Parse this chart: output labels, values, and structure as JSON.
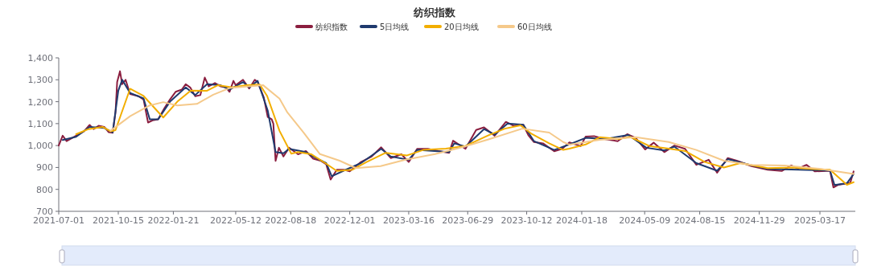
{
  "chart_data": {
    "type": "line",
    "title": "纺织指数",
    "legend": "top",
    "xlim": [
      "2021-07-01",
      "2025-05-19"
    ],
    "xticks": [
      "2021-07-01",
      "2021-10-15",
      "2022-01-21",
      "2022-05-12",
      "2022-08-18",
      "2022-12-01",
      "2023-03-16",
      "2023-06-29",
      "2023-10-12",
      "2024-01-18",
      "2024-05-09",
      "2024-08-15",
      "2024-11-29",
      "2025-03-17"
    ],
    "ylim": [
      700,
      1400
    ],
    "yticks": [
      700,
      800,
      900,
      {
        "value": 1000,
        "label": "1,000"
      },
      {
        "value": 1100,
        "label": "1,100"
      },
      {
        "value": 1200,
        "label": "1,200"
      },
      {
        "value": 1300,
        "label": "1,300"
      },
      {
        "value": 1400,
        "label": "1,400"
      }
    ],
    "series": [
      {
        "name": "纺织指数",
        "color": "#8b1e3f",
        "x": [
          "2021-07-01",
          "2021-07-08",
          "2021-07-15",
          "2021-08-01",
          "2021-08-15",
          "2021-08-25",
          "2021-09-01",
          "2021-09-10",
          "2021-09-20",
          "2021-09-28",
          "2021-10-05",
          "2021-10-10",
          "2021-10-13",
          "2021-10-18",
          "2021-10-22",
          "2021-10-28",
          "2021-11-05",
          "2021-11-20",
          "2021-11-29",
          "2021-12-07",
          "2021-12-15",
          "2021-12-25",
          "2022-01-05",
          "2022-01-15",
          "2022-01-25",
          "2022-02-05",
          "2022-02-12",
          "2022-02-20",
          "2022-03-01",
          "2022-03-10",
          "2022-03-18",
          "2022-03-25",
          "2022-04-05",
          "2022-04-15",
          "2022-04-25",
          "2022-05-01",
          "2022-05-08",
          "2022-05-12",
          "2022-05-25",
          "2022-06-05",
          "2022-06-15",
          "2022-06-20",
          "2022-07-01",
          "2022-07-08",
          "2022-07-15",
          "2022-07-18",
          "2022-07-22",
          "2022-07-28",
          "2022-08-05",
          "2022-08-15",
          "2022-08-31",
          "2022-09-14",
          "2022-09-27",
          "2022-10-10",
          "2022-10-20",
          "2022-10-28",
          "2022-11-08",
          "2022-11-20",
          "2022-12-01",
          "2022-12-21",
          "2023-01-09",
          "2023-01-26",
          "2023-02-12",
          "2023-03-03",
          "2023-03-16",
          "2023-03-31",
          "2023-04-19",
          "2023-05-08",
          "2023-05-27",
          "2023-06-03",
          "2023-06-25",
          "2023-07-14",
          "2023-07-28",
          "2023-08-16",
          "2023-09-05",
          "2023-09-19",
          "2023-10-06",
          "2023-10-15",
          "2023-10-25",
          "2023-11-10",
          "2023-11-30",
          "2023-12-14",
          "2023-12-27",
          "2024-01-16",
          "2024-01-25",
          "2024-02-09",
          "2024-02-29",
          "2024-03-22",
          "2024-04-08",
          "2024-04-23",
          "2024-05-10",
          "2024-05-25",
          "2024-06-13",
          "2024-07-01",
          "2024-07-20",
          "2024-08-09",
          "2024-08-31",
          "2024-09-15",
          "2024-10-04",
          "2024-10-21",
          "2024-11-15",
          "2024-12-14",
          "2025-01-08",
          "2025-01-25",
          "2025-02-06",
          "2025-02-21",
          "2025-03-08",
          "2025-04-04",
          "2025-04-10",
          "2025-04-19",
          "2025-05-04",
          "2025-05-10",
          "2025-05-16"
        ],
        "values": [
          1000,
          1045,
          1020,
          1045,
          1065,
          1094,
          1075,
          1090,
          1085,
          1061,
          1058,
          1150,
          1290,
          1339,
          1280,
          1300,
          1235,
          1225,
          1210,
          1105,
          1115,
          1120,
          1170,
          1210,
          1245,
          1255,
          1280,
          1265,
          1225,
          1230,
          1310,
          1270,
          1285,
          1270,
          1265,
          1245,
          1295,
          1275,
          1300,
          1260,
          1300,
          1290,
          1220,
          1130,
          1120,
          1100,
          930,
          990,
          950,
          990,
          960,
          975,
          940,
          931,
          915,
          845,
          890,
          890,
          882,
          925,
          950,
          992,
          943,
          960,
          925,
          985,
          985,
          975,
          967,
          1022,
          985,
          1071,
          1083,
          1045,
          1108,
          1090,
          1095,
          1047,
          1016,
          1010,
          974,
          985,
          1014,
          998,
          1041,
          1043,
          1029,
          1020,
          1052,
          1035,
          982,
          1013,
          970,
          1000,
          985,
          912,
          935,
          876,
          943,
          930,
          906,
          890,
          884,
          909,
          895,
          912,
          882,
          885,
          809,
          821,
          827,
          830,
          882
        ]
      },
      {
        "name": "5日均线",
        "color": "#1f3a6e",
        "x": [
          "2021-07-08",
          "2021-08-01",
          "2021-08-25",
          "2021-09-20",
          "2021-10-05",
          "2021-10-15",
          "2021-10-22",
          "2021-11-05",
          "2021-11-29",
          "2021-12-10",
          "2021-12-25",
          "2022-01-15",
          "2022-02-12",
          "2022-03-01",
          "2022-03-22",
          "2022-04-15",
          "2022-05-01",
          "2022-05-25",
          "2022-06-05",
          "2022-06-20",
          "2022-07-08",
          "2022-07-22",
          "2022-08-05",
          "2022-08-15",
          "2022-09-14",
          "2022-09-27",
          "2022-10-20",
          "2022-10-30",
          "2022-11-20",
          "2022-12-21",
          "2023-01-26",
          "2023-02-12",
          "2023-03-16",
          "2023-03-31",
          "2023-05-27",
          "2023-06-05",
          "2023-06-25",
          "2023-07-28",
          "2023-08-16",
          "2023-09-08",
          "2023-10-06",
          "2023-10-25",
          "2023-11-30",
          "2023-12-27",
          "2024-01-25",
          "2024-02-29",
          "2024-04-10",
          "2024-05-12",
          "2024-06-13",
          "2024-07-01",
          "2024-08-09",
          "2024-09-15",
          "2024-10-04",
          "2024-11-15",
          "2024-12-14",
          "2025-03-08",
          "2025-04-04",
          "2025-04-12",
          "2025-05-04",
          "2025-05-16"
        ],
        "values": [
          1025,
          1040,
          1085,
          1080,
          1060,
          1250,
          1300,
          1240,
          1215,
          1120,
          1120,
          1200,
          1265,
          1230,
          1280,
          1275,
          1255,
          1290,
          1265,
          1295,
          1160,
          970,
          965,
          985,
          970,
          950,
          920,
          860,
          885,
          920,
          985,
          950,
          935,
          980,
          970,
          1010,
          995,
          1075,
          1050,
          1100,
          1095,
          1020,
          980,
          1005,
          1035,
          1030,
          1048,
          990,
          978,
          995,
          920,
          885,
          938,
          910,
          893,
          888,
          885,
          820,
          828,
          870
        ]
      },
      {
        "name": "20日均线",
        "color": "#f2ae00",
        "x": [
          "2021-08-01",
          "2021-08-23",
          "2021-09-17",
          "2021-10-01",
          "2021-10-10",
          "2021-11-05",
          "2021-11-29",
          "2022-01-03",
          "2022-01-28",
          "2022-02-21",
          "2022-03-22",
          "2022-04-10",
          "2022-05-06",
          "2022-05-31",
          "2022-06-24",
          "2022-07-07",
          "2022-07-29",
          "2022-08-19",
          "2022-08-31",
          "2022-09-24",
          "2022-10-19",
          "2022-11-08",
          "2022-12-06",
          "2022-12-31",
          "2023-02-03",
          "2023-03-13",
          "2023-04-11",
          "2023-05-21",
          "2023-06-25",
          "2023-08-05",
          "2023-09-03",
          "2023-10-01",
          "2023-10-21",
          "2023-11-21",
          "2023-12-16",
          "2023-12-27",
          "2024-01-25",
          "2024-02-19",
          "2024-03-24",
          "2024-04-13",
          "2024-05-17",
          "2024-06-21",
          "2024-07-20",
          "2024-08-24",
          "2024-09-27",
          "2024-10-26",
          "2024-12-14",
          "2025-01-28",
          "2025-03-07",
          "2025-04-04",
          "2025-05-04",
          "2025-05-16"
        ],
        "values": [
          1052,
          1075,
          1085,
          1065,
          1070,
          1259,
          1226,
          1128,
          1200,
          1251,
          1250,
          1275,
          1265,
          1275,
          1278,
          1226,
          1067,
          963,
          970,
          960,
          919,
          884,
          890,
          925,
          967,
          955,
          980,
          986,
          998,
          1047,
          1077,
          1092,
          1053,
          1010,
          980,
          986,
          1005,
          1038,
          1030,
          1040,
          998,
          986,
          975,
          925,
          900,
          920,
          897,
          900,
          892,
          890,
          821,
          833
        ]
      },
      {
        "name": "60日均线",
        "color": "#f5c98a",
        "x": [
          "2021-10-01",
          "2021-11-05",
          "2021-12-10",
          "2022-01-03",
          "2022-01-28",
          "2022-03-04",
          "2022-04-02",
          "2022-05-02",
          "2022-05-31",
          "2022-06-30",
          "2022-07-29",
          "2022-08-12",
          "2022-09-10",
          "2022-10-09",
          "2022-11-13",
          "2022-12-12",
          "2023-01-25",
          "2023-03-13",
          "2023-05-02",
          "2023-06-19",
          "2023-08-05",
          "2023-10-04",
          "2023-11-21",
          "2023-12-16",
          "2023-12-27",
          "2024-02-19",
          "2024-04-23",
          "2024-06-21",
          "2024-08-09",
          "2024-09-27",
          "2024-11-15",
          "2025-01-13",
          "2025-03-16",
          "2025-05-16"
        ],
        "values": [
          1067,
          1134,
          1183,
          1198,
          1183,
          1190,
          1232,
          1263,
          1269,
          1275,
          1214,
          1151,
          1059,
          961,
          931,
          897,
          906,
          937,
          961,
          992,
          1028,
          1077,
          1059,
          1016,
          1004,
          1026,
          1038,
          1016,
          980,
          931,
          912,
          909,
          894,
          870
        ]
      }
    ]
  }
}
